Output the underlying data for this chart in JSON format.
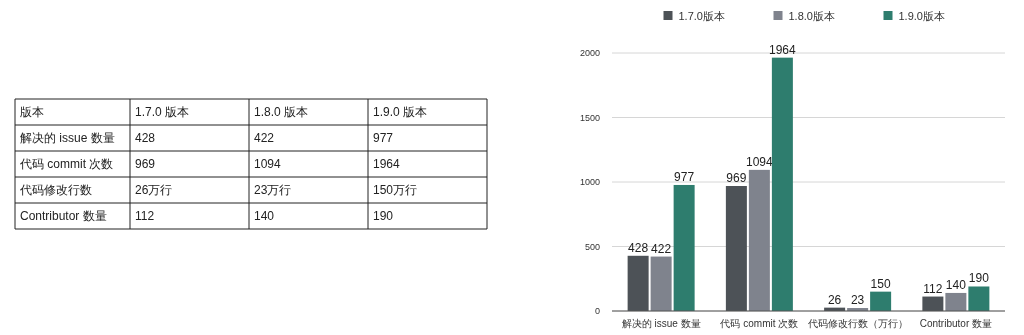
{
  "chart_data": [
    {
      "type": "heatmap",
      "title": "版本",
      "categories": [
        "1.7.0 版本",
        "1.8.0 版本",
        "1.9.0 版本"
      ],
      "y_categories": [
        "解决的 issue 数量",
        "代码 commit 次数",
        "代码修改行数",
        "Contributor  数量"
      ],
      "cells": [
        [
          428,
          422,
          977
        ],
        [
          969,
          1094,
          1964
        ],
        [
          26,
          23,
          150
        ],
        [
          112,
          140,
          190
        ]
      ],
      "cell_labels": [
        [
          "428",
          "422",
          "977"
        ],
        [
          "969",
          "1094",
          "1964"
        ],
        [
          "26万行",
          "23万行",
          "150万行"
        ],
        [
          "112",
          "140",
          "190"
        ]
      ]
    },
    {
      "type": "bar",
      "categories": [
        "解决的 issue 数量",
        "代码 commit 次数",
        "代码修改行数（万行）",
        "Contributor 数量"
      ],
      "series": [
        {
          "name": "1.7.0版本",
          "color": "#4d5257",
          "values": [
            428,
            969,
            26,
            112
          ]
        },
        {
          "name": "1.8.0版本",
          "color": "#7f838d",
          "values": [
            422,
            1094,
            23,
            140
          ]
        },
        {
          "name": "1.9.0版本",
          "color": "#2e7d6e",
          "values": [
            977,
            1964,
            150,
            190
          ]
        }
      ],
      "ylim": [
        0,
        2000
      ],
      "yticks": [
        0,
        500,
        1000,
        1500,
        2000
      ],
      "grid": "y",
      "legend": "top",
      "data_labels": true
    }
  ]
}
